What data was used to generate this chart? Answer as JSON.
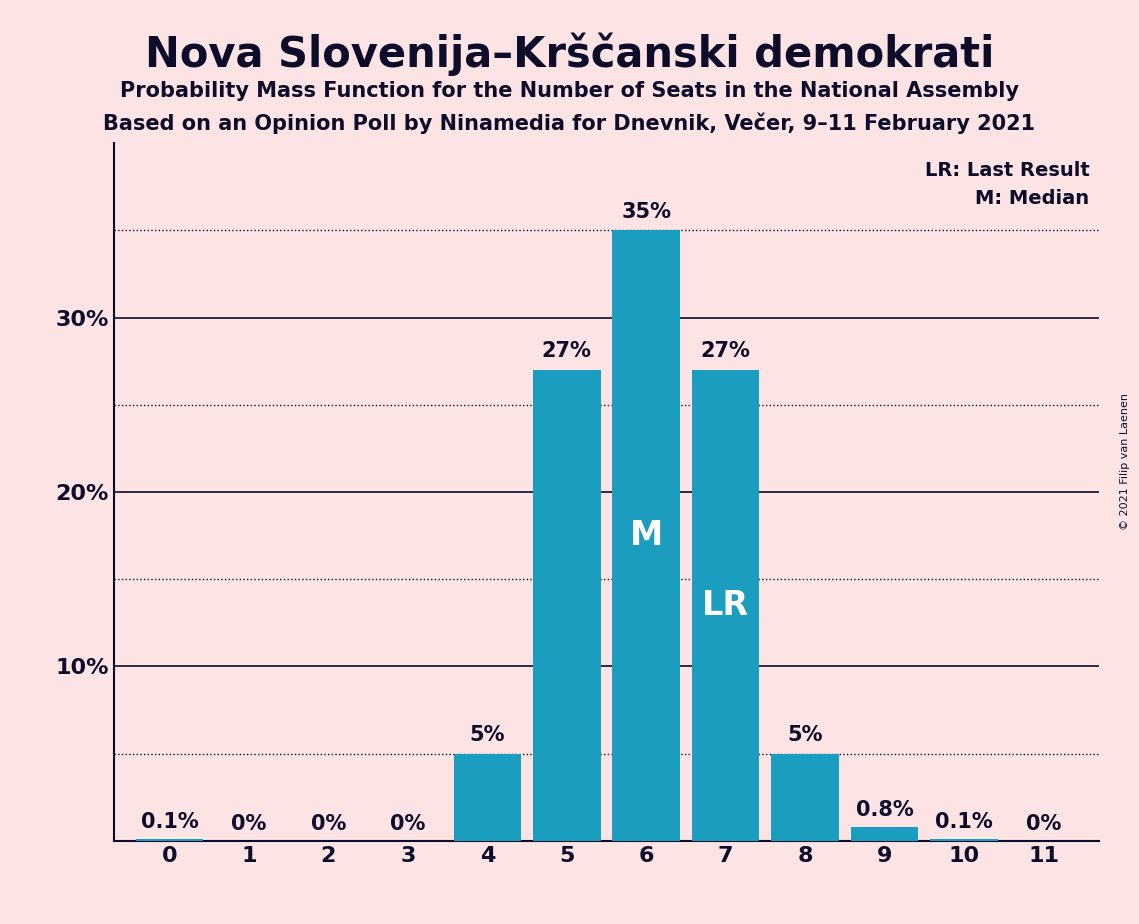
{
  "title": "Nova Slovenija–Krščanski demokrati",
  "subtitle1": "Probability Mass Function for the Number of Seats in the National Assembly",
  "subtitle2": "Based on an Opinion Poll by Ninamedia for Dnevnik, Večer, 9–11 February 2021",
  "copyright": "© 2021 Filip van Laenen",
  "categories": [
    0,
    1,
    2,
    3,
    4,
    5,
    6,
    7,
    8,
    9,
    10,
    11
  ],
  "values": [
    0.001,
    0.0,
    0.0,
    0.0,
    0.05,
    0.27,
    0.35,
    0.27,
    0.05,
    0.008,
    0.001,
    0.0
  ],
  "labels": [
    "0.1%",
    "0%",
    "0%",
    "0%",
    "5%",
    "27%",
    "35%",
    "27%",
    "5%",
    "0.8%",
    "0.1%",
    "0%"
  ],
  "bar_color": "#1a9dbf",
  "background_color": "#fce4e4",
  "text_color": "#0d0d2b",
  "median": 6,
  "last_result": 7,
  "ylim": [
    0,
    0.4
  ],
  "major_yticks": [
    0.1,
    0.2,
    0.3
  ],
  "major_ytick_labels": [
    "10%",
    "20%",
    "30%"
  ],
  "minor_yticks": [
    0.05,
    0.15,
    0.25,
    0.35
  ],
  "median_label_inside": "M",
  "lr_label_inside": "LR",
  "legend_lr": "LR: Last Result",
  "legend_m": "M: Median",
  "title_fontsize": 30,
  "subtitle_fontsize": 15,
  "tick_fontsize": 16,
  "label_fontsize": 15,
  "inside_label_fontsize": 24,
  "legend_fontsize": 14
}
